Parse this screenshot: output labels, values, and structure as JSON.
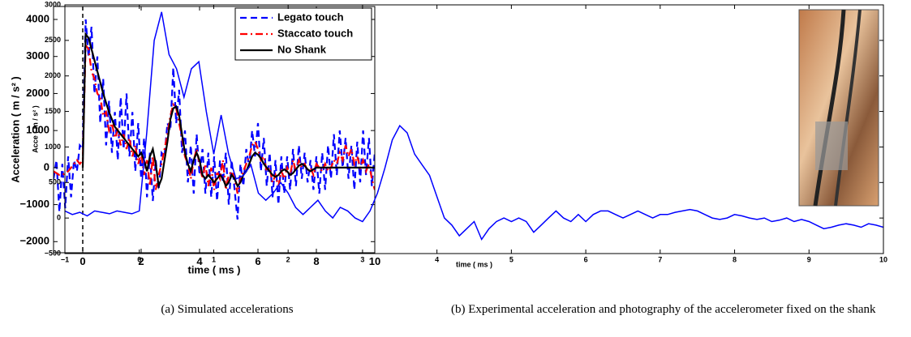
{
  "chart_data": [
    {
      "type": "line",
      "xlabel": "time ( ms )",
      "ylabel": "Acceleration ( m / s² )",
      "xlim": [
        -1,
        10
      ],
      "ylim": [
        -2300,
        4350
      ],
      "xticks": [
        0,
        2,
        4,
        6,
        8,
        10
      ],
      "yticks": [
        {
          "value": -2000,
          "label": "−2000"
        },
        {
          "value": -1000,
          "label": "−1000"
        },
        0,
        1000,
        2000,
        3000,
        4000
      ],
      "vline": 0,
      "legend": "upper right",
      "x": [
        -1.0,
        -0.9,
        -0.8,
        -0.7,
        -0.6,
        -0.5,
        -0.4,
        -0.3,
        -0.2,
        -0.1,
        0.0,
        0.1,
        0.2,
        0.3,
        0.4,
        0.5,
        0.6,
        0.7,
        0.8,
        0.9,
        1.0,
        1.1,
        1.2,
        1.3,
        1.4,
        1.5,
        1.6,
        1.7,
        1.8,
        1.9,
        2.0,
        2.1,
        2.2,
        2.3,
        2.4,
        2.5,
        2.6,
        2.7,
        2.8,
        2.9,
        3.0,
        3.1,
        3.2,
        3.3,
        3.4,
        3.5,
        3.6,
        3.7,
        3.8,
        3.9,
        4.0,
        4.1,
        4.2,
        4.3,
        4.4,
        4.5,
        4.6,
        4.7,
        4.8,
        4.9,
        5.0,
        5.1,
        5.2,
        5.3,
        5.4,
        5.5,
        5.6,
        5.7,
        5.8,
        5.9,
        6.0,
        6.1,
        6.2,
        6.3,
        6.4,
        6.5,
        6.6,
        6.7,
        6.8,
        6.9,
        7.0,
        7.1,
        7.2,
        7.3,
        7.4,
        7.5,
        7.6,
        7.7,
        7.8,
        7.9,
        8.0,
        8.1,
        8.2,
        8.3,
        8.4,
        8.5,
        8.6,
        8.7,
        8.8,
        8.9,
        9.0,
        9.1,
        9.2,
        9.3,
        9.4,
        9.5,
        9.6,
        9.7,
        9.8,
        9.9,
        10.0
      ],
      "series": [
        {
          "name": "Legato touch",
          "color": "#0000ff",
          "style": "dashed",
          "values": [
            -300,
            200,
            -1200,
            100,
            -1100,
            300,
            -800,
            200,
            -100,
            600,
            500,
            4000,
            3000,
            3800,
            2000,
            3000,
            1200,
            2400,
            600,
            1800,
            400,
            1500,
            200,
            1900,
            500,
            2000,
            300,
            1500,
            -100,
            1200,
            -300,
            800,
            -800,
            400,
            -900,
            200,
            -600,
            400,
            300,
            1200,
            1000,
            2700,
            1200,
            2100,
            400,
            1000,
            -400,
            600,
            -700,
            900,
            -200,
            500,
            -700,
            400,
            -800,
            300,
            -900,
            200,
            -400,
            400,
            -1000,
            200,
            -600,
            -1400,
            100,
            -500,
            500,
            0,
            1000,
            300,
            1200,
            -100,
            800,
            -500,
            400,
            -800,
            200,
            -1000,
            300,
            -700,
            300,
            -600,
            500,
            -500,
            600,
            -300,
            400,
            -400,
            200,
            -600,
            300,
            -700,
            400,
            -600,
            600,
            -300,
            900,
            -200,
            1000,
            0,
            800,
            -300,
            600,
            -600,
            700,
            -400,
            1000,
            -200,
            800,
            -500,
            400
          ]
        },
        {
          "name": "Staccato touch",
          "color": "#ff0000",
          "style": "dashdot",
          "values": [
            -100,
            -150,
            -200,
            -200,
            -150,
            -100,
            0,
            100,
            200,
            100,
            200,
            3300,
            3200,
            2600,
            2400,
            2000,
            1900,
            1400,
            1500,
            1000,
            1200,
            800,
            1000,
            600,
            900,
            500,
            800,
            300,
            600,
            100,
            400,
            -200,
            200,
            -500,
            300,
            -600,
            -200,
            100,
            500,
            900,
            1400,
            1700,
            1600,
            1200,
            800,
            300,
            100,
            -300,
            200,
            500,
            100,
            -300,
            100,
            -500,
            0,
            -600,
            -100,
            -300,
            200,
            -600,
            -200,
            -100,
            -300,
            -700,
            -300,
            -100,
            100,
            300,
            600,
            700,
            500,
            200,
            300,
            -100,
            0,
            -400,
            -200,
            -500,
            -100,
            -300,
            0,
            -200,
            200,
            -100,
            200,
            0,
            100,
            -100,
            0,
            -200,
            100,
            0,
            -100,
            100,
            -100,
            0,
            200,
            100,
            400,
            200,
            600,
            300,
            500,
            100,
            300,
            0,
            200,
            -100,
            100,
            -300,
            -600
          ]
        },
        {
          "name": "No Shank",
          "color": "#000000",
          "style": "solid",
          "values": [
            null,
            null,
            null,
            null,
            null,
            null,
            null,
            null,
            null,
            null,
            0,
            3600,
            3500,
            3200,
            2900,
            2600,
            2300,
            2000,
            1750,
            1500,
            1300,
            1100,
            1000,
            900,
            800,
            700,
            600,
            500,
            400,
            300,
            400,
            200,
            -100,
            300,
            500,
            100,
            -500,
            -300,
            200,
            700,
            1300,
            1600,
            1650,
            1400,
            900,
            400,
            100,
            -100,
            200,
            400,
            200,
            -200,
            -300,
            -200,
            -300,
            -400,
            -300,
            -200,
            -300,
            -500,
            -400,
            -200,
            -300,
            -500,
            -400,
            -200,
            -100,
            100,
            300,
            400,
            350,
            250,
            100,
            0,
            -100,
            -200,
            -250,
            -200,
            -100,
            -50,
            -100,
            -200,
            -150,
            -50,
            50,
            100,
            50,
            -50,
            -100,
            -50,
            0,
            0,
            0,
            0,
            0,
            0,
            0,
            0,
            0,
            0,
            0,
            0,
            0,
            0,
            0,
            0,
            0,
            0,
            0,
            0,
            0
          ]
        }
      ]
    },
    {
      "type": "line",
      "xlabel": "time ( ms )",
      "ylabel": "Acce ( m / s² )",
      "xlim": [
        -1,
        10
      ],
      "ylim": [
        -500,
        3000
      ],
      "xticks": [
        {
          "value": -1,
          "label": "−1"
        },
        0,
        1,
        2,
        3,
        4,
        5,
        6,
        7,
        8,
        9,
        10
      ],
      "yticks": [
        {
          "value": -500,
          "label": "−500"
        },
        0,
        500,
        1000,
        1500,
        2000,
        2500,
        3000
      ],
      "x": [
        -1.0,
        -0.9,
        -0.8,
        -0.7,
        -0.6,
        -0.5,
        -0.4,
        -0.3,
        -0.2,
        -0.1,
        0.0,
        0.1,
        0.2,
        0.3,
        0.4,
        0.5,
        0.6,
        0.7,
        0.8,
        0.9,
        1.0,
        1.1,
        1.2,
        1.3,
        1.4,
        1.5,
        1.6,
        1.7,
        1.8,
        1.9,
        2.0,
        2.1,
        2.2,
        2.3,
        2.4,
        2.5,
        2.6,
        2.7,
        2.8,
        2.9,
        3.0,
        3.1,
        3.2,
        3.3,
        3.4,
        3.5,
        3.6,
        3.7,
        3.8,
        3.9,
        4.0,
        4.1,
        4.2,
        4.3,
        4.4,
        4.5,
        4.6,
        4.7,
        4.8,
        4.9,
        5.0,
        5.1,
        5.2,
        5.3,
        5.4,
        5.5,
        5.6,
        5.7,
        5.8,
        5.9,
        6.0,
        6.1,
        6.2,
        6.3,
        6.4,
        6.5,
        6.6,
        6.7,
        6.8,
        6.9,
        7.0,
        7.1,
        7.2,
        7.3,
        7.4,
        7.5,
        7.6,
        7.7,
        7.8,
        7.9,
        8.0,
        8.1,
        8.2,
        8.3,
        8.4,
        8.5,
        8.6,
        8.7,
        8.8,
        8.9,
        9.0,
        9.1,
        9.2,
        9.3,
        9.4,
        9.5,
        9.6,
        9.7,
        9.8,
        9.9,
        10.0
      ],
      "color": "#0000ff",
      "values": [
        100,
        50,
        80,
        30,
        100,
        80,
        60,
        100,
        80,
        60,
        100,
        1200,
        2500,
        2900,
        2300,
        2100,
        1700,
        2100,
        2200,
        1500,
        900,
        1450,
        900,
        550,
        600,
        750,
        350,
        250,
        350,
        500,
        350,
        150,
        50,
        150,
        250,
        100,
        0,
        150,
        100,
        0,
        -50,
        100,
        350,
        700,
        1100,
        1300,
        1200,
        900,
        750,
        600,
        300,
        0,
        -100,
        -250,
        -150,
        -50,
        -300,
        -150,
        -50,
        0,
        -50,
        0,
        -50,
        -200,
        -100,
        0,
        100,
        0,
        -50,
        50,
        -50,
        50,
        100,
        100,
        50,
        0,
        50,
        100,
        50,
        0,
        50,
        50,
        80,
        100,
        120,
        100,
        50,
        0,
        -20,
        0,
        50,
        30,
        0,
        -20,
        0,
        -50,
        -30,
        0,
        -50,
        -20,
        -50,
        -100,
        -150,
        -130,
        -100,
        -80,
        -100,
        -130,
        -80,
        -100,
        -130
      ]
    }
  ],
  "captions": [
    "(a)  Simulated accelerations",
    "(b)  Experimental acceleration and photography of the accelerometer fixed on the shank"
  ]
}
